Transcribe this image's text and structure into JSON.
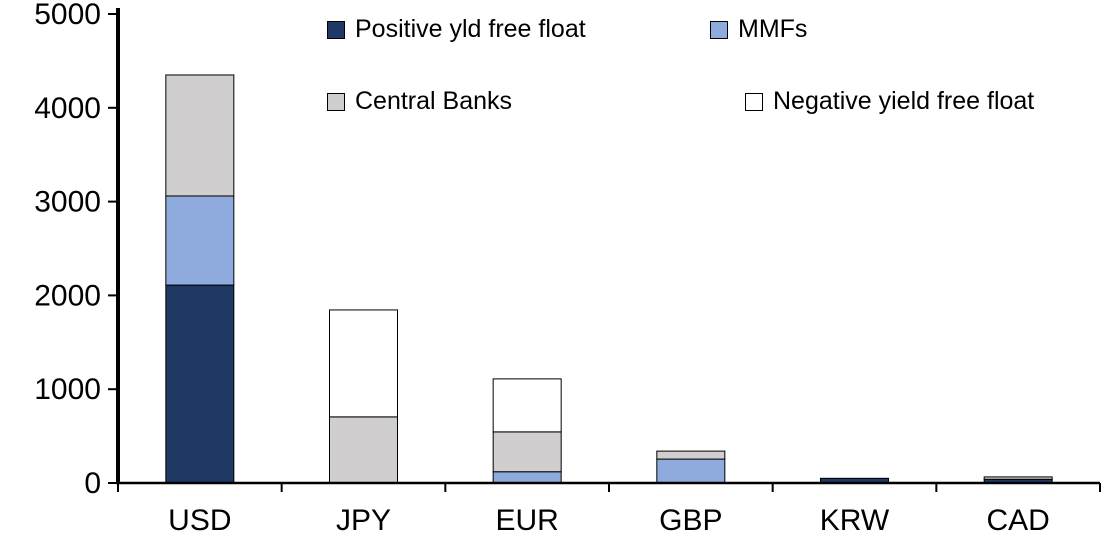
{
  "chart_data": {
    "type": "bar",
    "stacked": true,
    "title": "",
    "xlabel": "",
    "ylabel": "",
    "categories": [
      "USD",
      "JPY",
      "EUR",
      "GBP",
      "KRW",
      "CAD"
    ],
    "series": [
      {
        "name": "Positive yld free float",
        "color": "#1F3864",
        "values": [
          2110,
          0,
          0,
          0,
          50,
          40
        ]
      },
      {
        "name": "MMFs",
        "color": "#8FAADC",
        "values": [
          950,
          0,
          120,
          255,
          0,
          0
        ]
      },
      {
        "name": "Central Banks",
        "color": "#D0CECE",
        "values": [
          1290,
          705,
          425,
          85,
          0,
          25
        ]
      },
      {
        "name": "Negative yield free float",
        "color": "#FFFFFF",
        "values": [
          0,
          1140,
          565,
          0,
          0,
          0
        ]
      }
    ],
    "ylim": [
      0,
      5000
    ],
    "yticks": [
      0,
      1000,
      2000,
      3000,
      4000,
      5000
    ],
    "grid": false,
    "legend_position": "top",
    "axis_color": "#000000",
    "text_color": "#000000",
    "background_color": "#FFFFFF"
  }
}
